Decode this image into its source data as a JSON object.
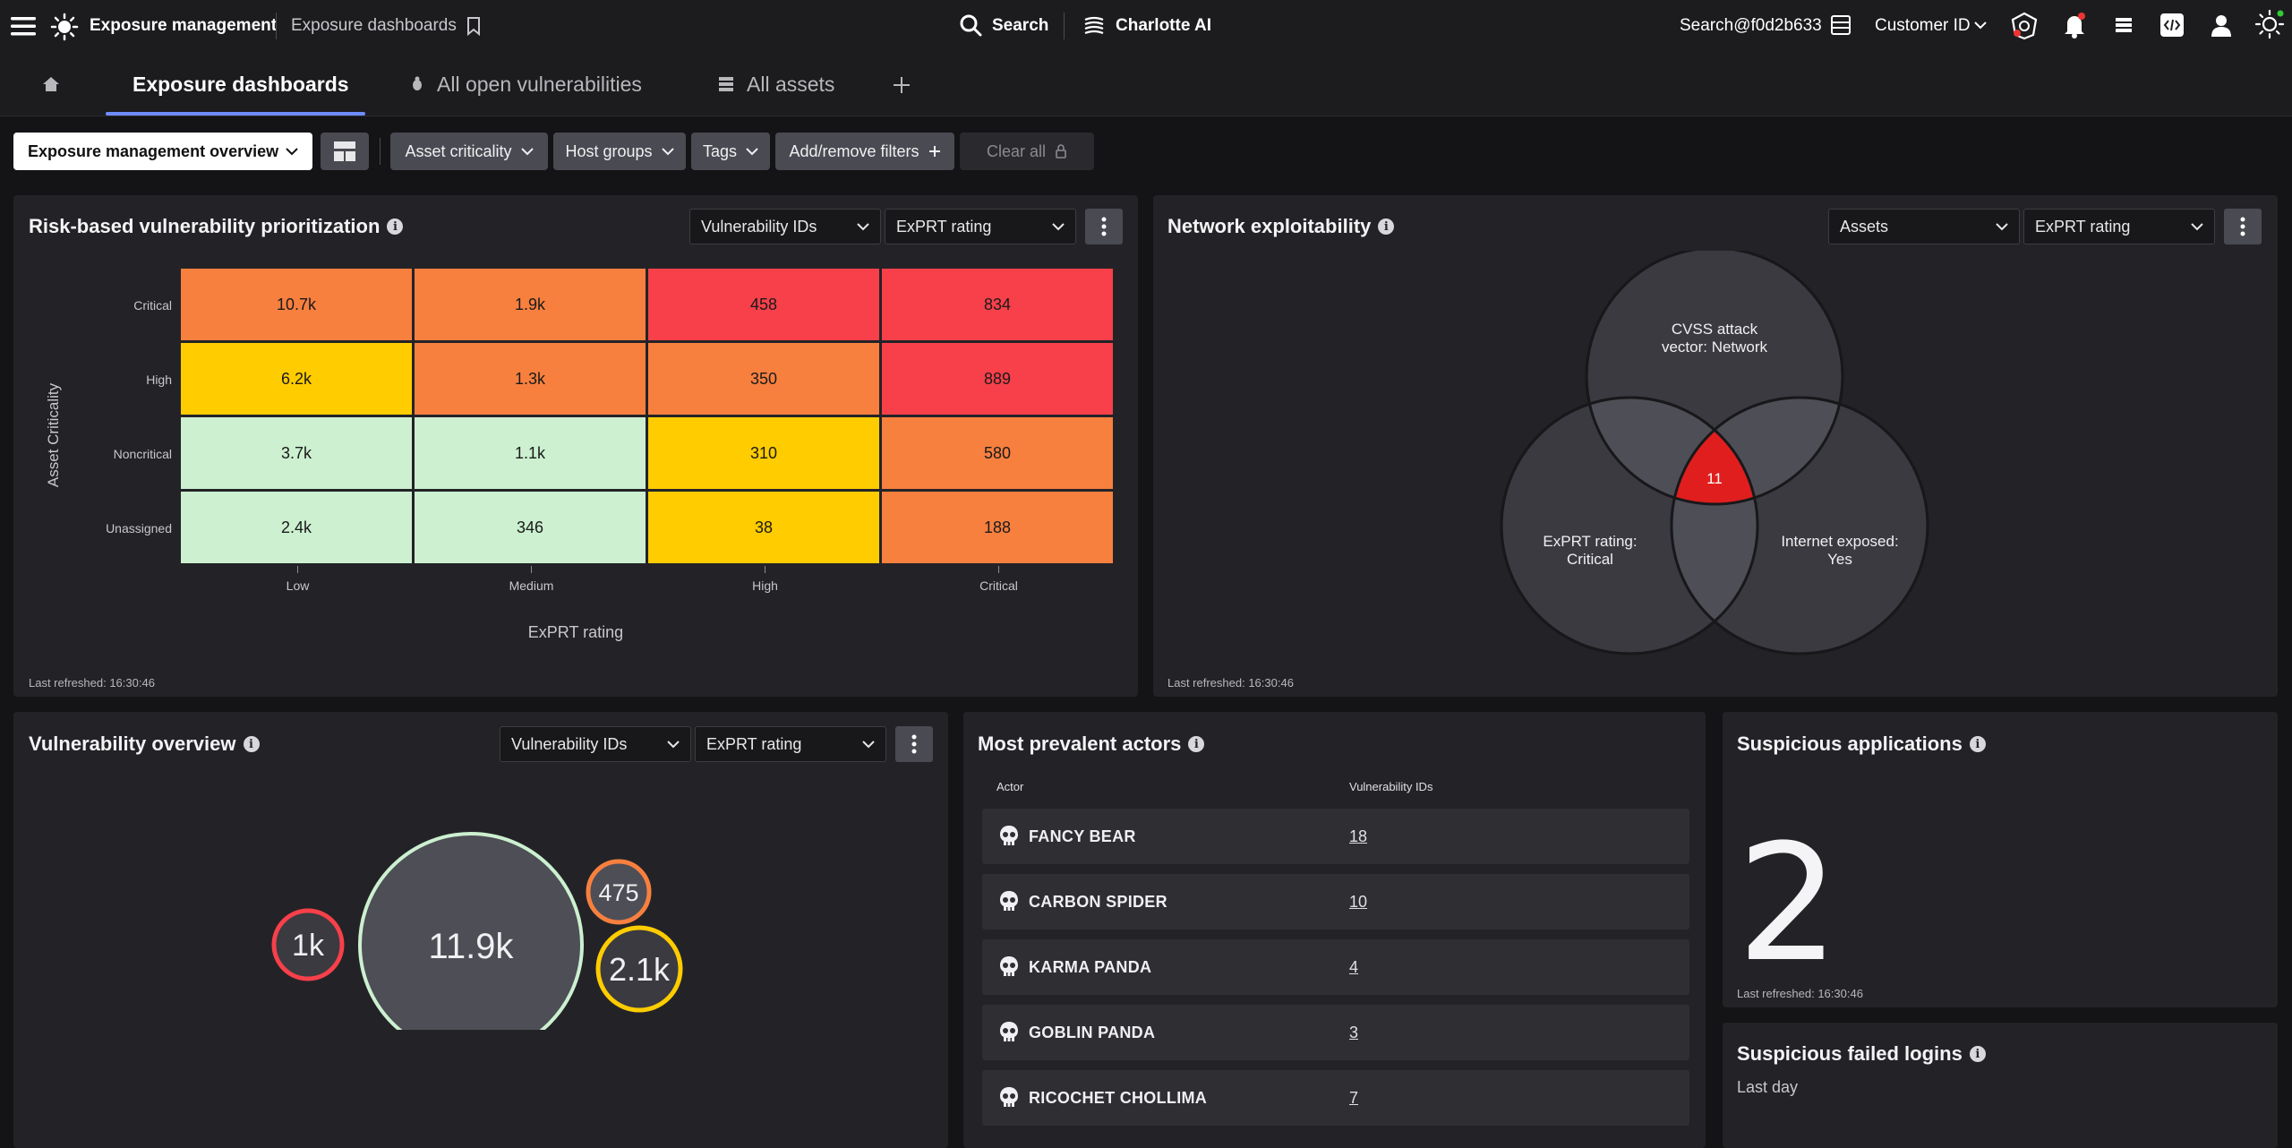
{
  "topbar": {
    "app_title": "Exposure management",
    "breadcrumb": "Exposure dashboards",
    "search_label": "Search",
    "ai_label": "Charlotte AI",
    "user": "Search@f0d2b633",
    "customer_id": "Customer ID"
  },
  "tabs": [
    {
      "label": "Exposure dashboards"
    },
    {
      "label": "All open vulnerabilities"
    },
    {
      "label": "All assets"
    }
  ],
  "filters": {
    "dashboard_select": "Exposure management overview",
    "chips": [
      "Asset criticality",
      "Host groups",
      "Tags",
      "Add/remove filters"
    ],
    "clear_all": "Clear all"
  },
  "risk_panel": {
    "title": "Risk-based vulnerability prioritization",
    "dd1": "Vulnerability IDs",
    "dd2": "ExPRT rating",
    "refreshed": "Last refreshed: 16:30:46",
    "chart_data": {
      "type": "heatmap",
      "ylabel": "Asset Criticality",
      "xlabel": "ExPRT rating",
      "rows": [
        "Critical",
        "High",
        "Noncritical",
        "Unassigned"
      ],
      "cols": [
        "Low",
        "Medium",
        "High",
        "Critical"
      ],
      "values": [
        [
          "10.7k",
          "1.9k",
          "458",
          "834"
        ],
        [
          "6.2k",
          "1.3k",
          "350",
          "889"
        ],
        [
          "3.7k",
          "1.1k",
          "310",
          "580"
        ],
        [
          "2.4k",
          "346",
          "38",
          "188"
        ]
      ],
      "colors": [
        [
          "#f7803f",
          "#f7803f",
          "#f7404a",
          "#f7404a"
        ],
        [
          "#ffcc00",
          "#f7803f",
          "#f7803f",
          "#f7404a"
        ],
        [
          "#ccf0d0",
          "#ccf0d0",
          "#ffcc00",
          "#f7803f"
        ],
        [
          "#ccf0d0",
          "#ccf0d0",
          "#ffcc00",
          "#f7803f"
        ]
      ]
    }
  },
  "network_panel": {
    "title": "Network exploitability",
    "dd1": "Assets",
    "dd2": "ExPRT rating",
    "refreshed": "Last refreshed: 16:30:46",
    "venn": {
      "top_label_1": "CVSS attack",
      "top_label_2": "vector: Network",
      "left_label_1": "ExPRT rating:",
      "left_label_2": "Critical",
      "right_label_1": "Internet exposed:",
      "right_label_2": "Yes",
      "center_value": "11",
      "center_color": "#e01e1e"
    }
  },
  "vuln_panel": {
    "title": "Vulnerability overview",
    "dd1": "Vulnerability IDs",
    "dd2": "ExPRT rating",
    "bubbles": [
      {
        "label": "1k",
        "color": "#f7404a"
      },
      {
        "label": "11.9k",
        "color": "#ccf0d0"
      },
      {
        "label": "475",
        "color": "#f7803f"
      },
      {
        "label": "2.1k",
        "color": "#ffcc00"
      }
    ]
  },
  "actors_panel": {
    "title": "Most prevalent actors",
    "col_actor": "Actor",
    "col_vulns": "Vulnerability IDs",
    "rows": [
      {
        "name": "FANCY BEAR",
        "count": "18"
      },
      {
        "name": "CARBON SPIDER",
        "count": "10"
      },
      {
        "name": "KARMA PANDA",
        "count": "4"
      },
      {
        "name": "GOBLIN PANDA",
        "count": "3"
      },
      {
        "name": "RICOCHET CHOLLIMA",
        "count": "7"
      }
    ]
  },
  "suspicious_apps": {
    "title": "Suspicious applications",
    "value": "2",
    "refreshed": "Last refreshed: 16:30:46"
  },
  "failed_logins": {
    "title": "Suspicious failed logins",
    "subtitle": "Last day"
  }
}
